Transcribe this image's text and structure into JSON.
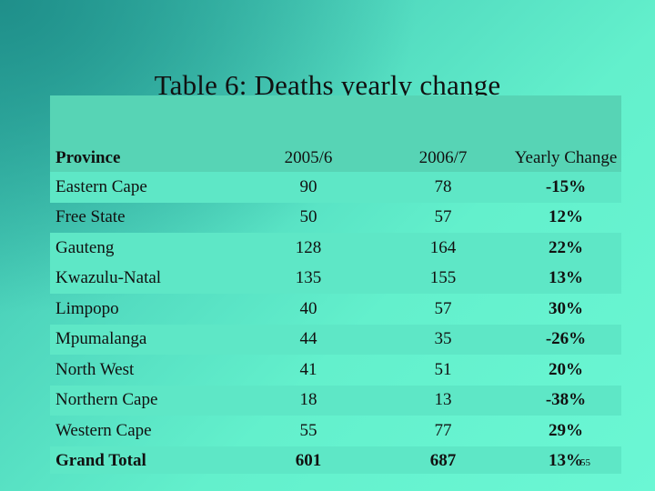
{
  "slide": {
    "title": "Table 6: Deaths yearly change",
    "page_number": "55"
  },
  "table": {
    "columns": [
      "Province",
      "2005/6",
      "2006/7",
      "Yearly Change"
    ],
    "rows": [
      {
        "province": "Eastern Cape",
        "y2005_6": "90",
        "y2006_7": "78",
        "change": "-15%"
      },
      {
        "province": "Free State",
        "y2005_6": "50",
        "y2006_7": "57",
        "change": "12%"
      },
      {
        "province": "Gauteng",
        "y2005_6": "128",
        "y2006_7": "164",
        "change": "22%"
      },
      {
        "province": "Kwazulu-Natal",
        "y2005_6": "135",
        "y2006_7": "155",
        "change": "13%"
      },
      {
        "province": "Limpopo",
        "y2005_6": "40",
        "y2006_7": "57",
        "change": "30%"
      },
      {
        "province": "Mpumalanga",
        "y2005_6": "44",
        "y2006_7": "35",
        "change": "-26%"
      },
      {
        "province": "North West",
        "y2005_6": "41",
        "y2006_7": "51",
        "change": "20%"
      },
      {
        "province": "Northern Cape",
        "y2005_6": "18",
        "y2006_7": "13",
        "change": "-38%"
      },
      {
        "province": "Western Cape",
        "y2005_6": "55",
        "y2006_7": "77",
        "change": "29%"
      }
    ],
    "total": {
      "province": "Grand Total",
      "y2005_6": "601",
      "y2006_7": "687",
      "change": "13%"
    }
  },
  "colors": {
    "band": "#5ee7c6",
    "header": "#57d4b5",
    "background_dark": "#1f8f8a",
    "background_light": "#6bf7d4"
  }
}
